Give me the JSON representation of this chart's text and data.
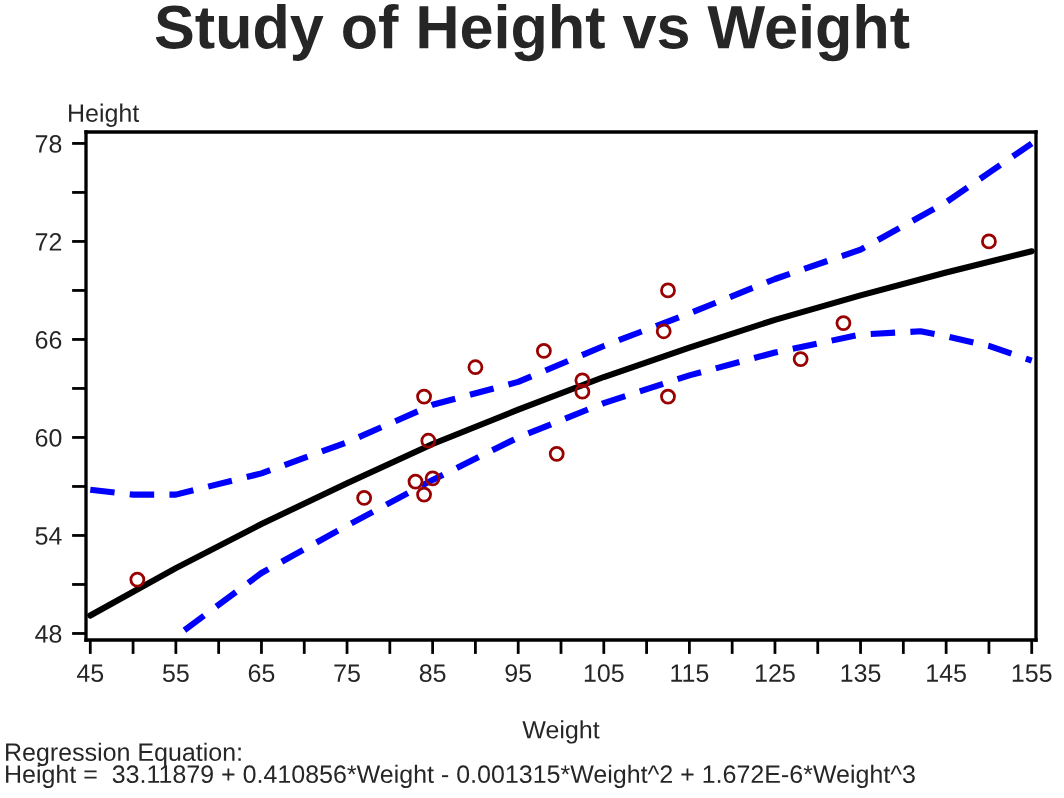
{
  "chart_data": {
    "type": "scatter",
    "title": "Study of Height vs Weight",
    "xlabel": "Weight",
    "ylabel": "Height",
    "xlim": [
      44.5,
      155.5
    ],
    "ylim": [
      47.6,
      78.7
    ],
    "xticks": [
      45,
      {
        "value": 50,
        "label": null
      },
      55,
      {
        "value": 60,
        "label": null
      },
      65,
      {
        "value": 70,
        "label": null
      },
      75,
      {
        "value": 80,
        "label": null
      },
      85,
      {
        "value": 90,
        "label": null
      },
      95,
      {
        "value": 100,
        "label": null
      },
      105,
      {
        "value": 110,
        "label": null
      },
      115,
      {
        "value": 120,
        "label": null
      },
      125,
      {
        "value": 130,
        "label": null
      },
      135,
      {
        "value": 140,
        "label": null
      },
      145,
      {
        "value": 150,
        "label": null
      },
      155
    ],
    "yticks": [
      48,
      {
        "value": 51,
        "label": null
      },
      54,
      {
        "value": 57,
        "label": null
      },
      60,
      {
        "value": 63,
        "label": null
      },
      66,
      {
        "value": 69,
        "label": null
      },
      72,
      {
        "value": 75,
        "label": null
      },
      78
    ],
    "grid": false,
    "legend": false,
    "series": [
      {
        "color": "#990000",
        "marker": "circle",
        "x": [
          112.5,
          84.0,
          98.0,
          102.5,
          102.5,
          83.0,
          84.5,
          112.5,
          84.0,
          99.5,
          50.5,
          90.0,
          77.0,
          112.0,
          150.0,
          128.0,
          133.0,
          85.0
        ],
        "values": [
          69.0,
          56.5,
          65.3,
          62.8,
          63.5,
          57.3,
          59.8,
          62.5,
          62.5,
          59.0,
          51.3,
          64.3,
          56.3,
          66.5,
          72.0,
          64.8,
          67.0,
          57.5
        ]
      },
      {
        "type": "line",
        "color": "#000000",
        "line_style": "solid",
        "x": [
          45,
          55,
          65,
          75,
          85,
          95,
          105,
          115,
          125,
          135,
          145,
          155
        ],
        "values": [
          49.1,
          52.0,
          54.7,
          57.2,
          59.6,
          61.7,
          63.7,
          65.5,
          67.2,
          68.7,
          70.1,
          71.4
        ]
      },
      {
        "type": "line",
        "color": "#0000ff",
        "line_style": "dashed",
        "x": [
          45,
          50,
          55,
          65,
          75,
          85,
          95,
          105,
          115,
          125,
          135,
          145,
          150,
          155
        ],
        "values": [
          56.8,
          56.5,
          56.5,
          57.8,
          59.7,
          62.0,
          63.4,
          65.6,
          67.6,
          69.7,
          71.5,
          74.4,
          76.2,
          78.0
        ]
      },
      {
        "type": "line",
        "color": "#0000ff",
        "line_style": "dashed",
        "x": [
          56,
          65,
          75,
          85,
          95,
          105,
          115,
          125,
          135,
          142,
          145,
          150,
          155
        ],
        "values": [
          48.2,
          51.7,
          54.6,
          57.4,
          60.0,
          62.1,
          63.8,
          65.2,
          66.3,
          66.5,
          66.2,
          65.6,
          64.7
        ]
      }
    ],
    "annotations": [
      "Regression Equation:",
      "Height =  33.11879 + 0.410856*Weight - 0.001315*Weight^2 + 1.672E-6*Weight^3"
    ]
  }
}
